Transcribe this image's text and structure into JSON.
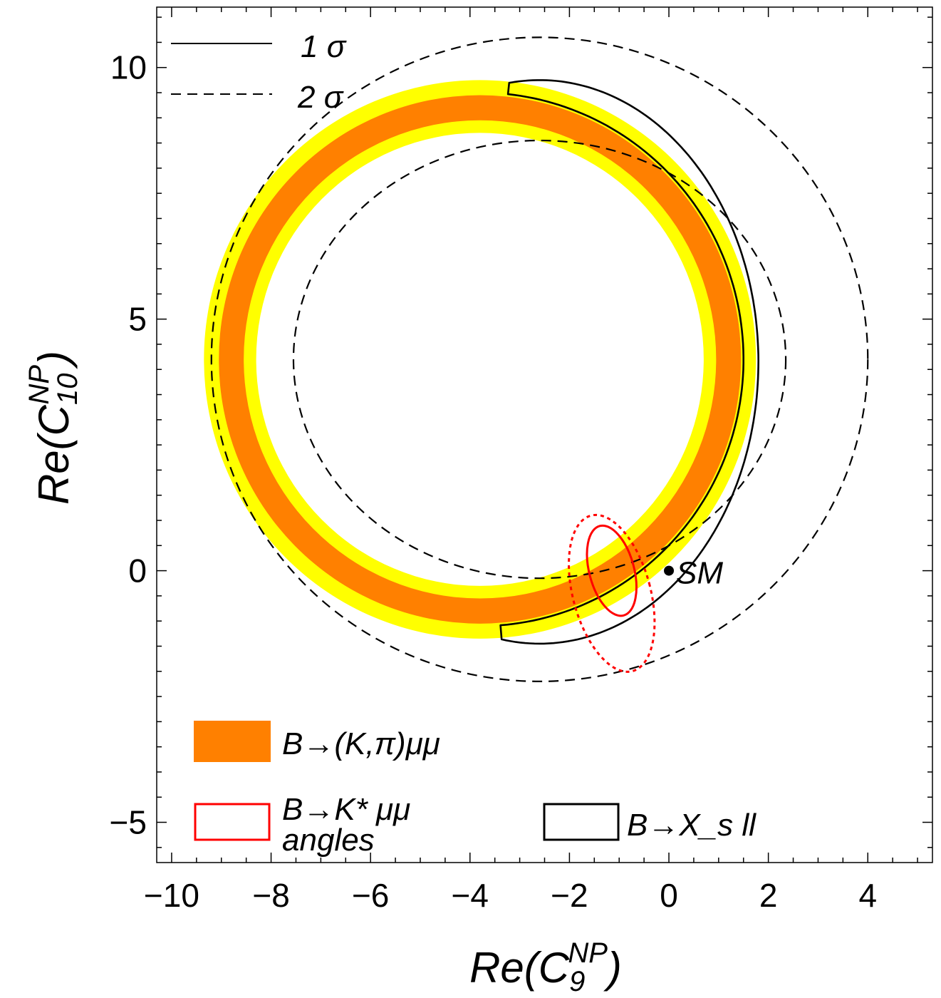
{
  "chart_data": {
    "type": "contour",
    "xlabel": {
      "base": "Re(C",
      "sub": "9",
      "sup": "NP",
      "close": ")"
    },
    "ylabel": {
      "base": "Re(C",
      "sub": "10",
      "sup": "NP",
      "close": ")"
    },
    "xlim": [
      -10.3,
      5.3
    ],
    "ylim": [
      -5.8,
      11.2
    ],
    "xticks": [
      -10,
      -8,
      -6,
      -4,
      -2,
      0,
      2,
      4
    ],
    "yticks": [
      -5,
      0,
      5,
      10
    ],
    "xtick_labels": [
      "−10",
      "−8",
      "−6",
      "−4",
      "−2",
      "0",
      "2",
      "4"
    ],
    "ytick_labels": [
      "−5",
      "0",
      "5",
      "10"
    ],
    "grid": false,
    "regions": [
      {
        "name": "B→(K,π)μμ",
        "kind": "annulus",
        "center": [
          -3.8,
          4.2
        ],
        "bands": [
          {
            "level": "2σ",
            "color": "#ffff00",
            "r_inner": 4.5,
            "r_outer": 5.55
          },
          {
            "level": "1σ",
            "color": "#ff8000",
            "r_inner": 4.75,
            "r_outer": 5.25
          }
        ]
      },
      {
        "name": "B→X_s ll",
        "kind": "contour",
        "color": "#000000",
        "contours": [
          {
            "level": "1σ",
            "style": "solid",
            "shape": "crescent",
            "center": [
              -2.6,
              4.15
            ],
            "rx": 4.4,
            "ry": 5.6,
            "cutout_center": [
              -3.8,
              4.2
            ],
            "cutout_radius": 5.3
          },
          {
            "level": "2σ",
            "style": "dashed",
            "shape": "ring",
            "center": [
              -2.6,
              4.2
            ],
            "rx_outer": 6.6,
            "ry_outer": 6.4,
            "rx_inner": 4.95,
            "ry_inner": 4.35,
            "inner_center": [
              -2.6,
              4.2
            ]
          }
        ]
      },
      {
        "name": "B→K* μμ angles",
        "kind": "ellipse",
        "color": "#ff0000",
        "contours": [
          {
            "level": "1σ",
            "style": "solid",
            "center": [
              -1.15,
              0.0
            ],
            "rx": 0.45,
            "ry": 0.92,
            "rotation_deg": -15
          },
          {
            "level": "2σ",
            "style": "dotted",
            "center": [
              -1.15,
              -0.45
            ],
            "rx": 0.78,
            "ry": 1.6,
            "rotation_deg": -15
          }
        ]
      }
    ],
    "points": [
      {
        "label": "SM",
        "x": 0,
        "y": 0
      }
    ],
    "legend": {
      "line_styles": [
        {
          "style": "solid",
          "label": "1σ"
        },
        {
          "style": "dashed",
          "label": "2σ"
        }
      ],
      "entries": [
        {
          "label": "B→(K,π)μμ",
          "swatch": "filled",
          "color": "#ff8000"
        },
        {
          "label_line1": "B→K* μμ",
          "label_line2": "angles",
          "swatch": "outline",
          "color": "#ff0000"
        },
        {
          "label": "B→X_s ll",
          "swatch": "outline",
          "color": "#000000"
        }
      ]
    }
  }
}
